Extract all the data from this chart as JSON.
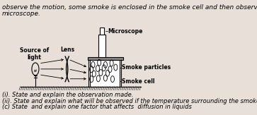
{
  "bg_color": "#c8c0b8",
  "inner_bg": "#e8e0d8",
  "text_color": "#000000",
  "title_line1": "observe the motion, some smoke is enclosed in the smoke cell and then observed through the",
  "title_line2": "microscope.",
  "label_source": "Source of\nlight",
  "label_lens": "Lens",
  "label_microscope": "Microscope",
  "label_smoke_particles": "Smoke particles",
  "label_smoke_cell": "Smoke cell",
  "question_i": "(i). State and explain the observation made.",
  "question_ii": "(ii). State and explain what will be observed if the temperature surrounding the smoke cell is increased.",
  "question_c": "(c) State  and explain one factor that affects  diffusion in liquids",
  "font_size_title": 6.5,
  "font_size_labels": 5.5,
  "font_size_questions": 6.0
}
